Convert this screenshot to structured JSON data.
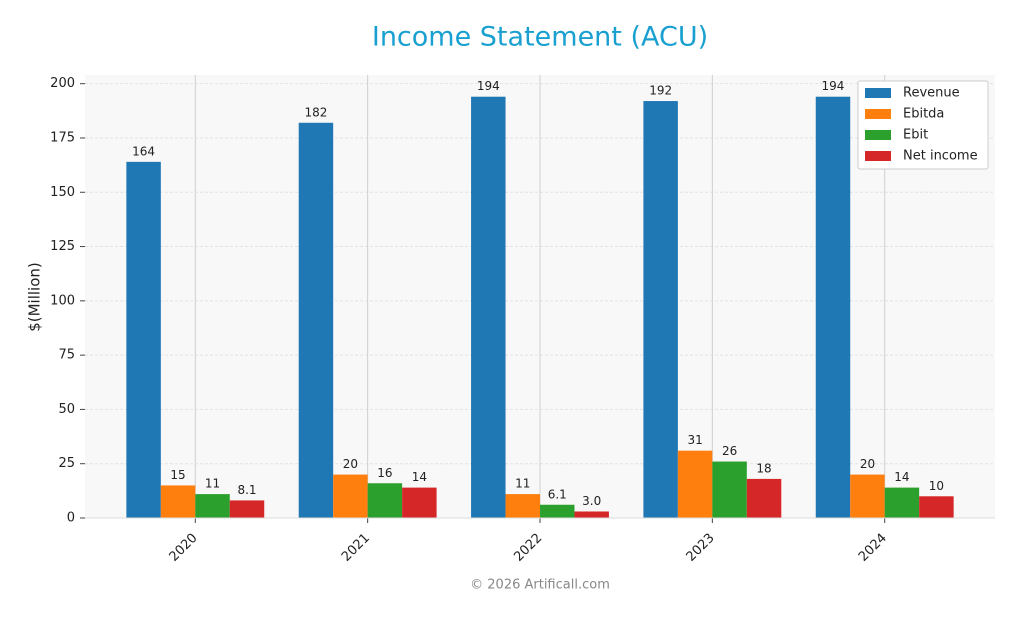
{
  "chart_data": {
    "type": "bar",
    "title": "Income Statement (ACU)",
    "ylabel": "$(Million)",
    "footer": "© 2026 Artificall.com",
    "categories": [
      "2020",
      "2021",
      "2022",
      "2023",
      "2024"
    ],
    "series": [
      {
        "name": "Revenue",
        "color": "#1f77b4",
        "values": [
          164,
          182,
          194,
          192,
          194
        ],
        "value_labels": [
          "164",
          "182",
          "194",
          "192",
          "194"
        ]
      },
      {
        "name": "Ebitda",
        "color": "#ff7f0e",
        "values": [
          15,
          20,
          11,
          31,
          20
        ],
        "value_labels": [
          "15",
          "20",
          "11",
          "31",
          "20"
        ]
      },
      {
        "name": "Ebit",
        "color": "#2ca02c",
        "values": [
          11,
          16,
          6.1,
          26,
          14
        ],
        "value_labels": [
          "11",
          "16",
          "6.1",
          "26",
          "14"
        ]
      },
      {
        "name": "Net income",
        "color": "#d62728",
        "values": [
          8.1,
          14,
          3.0,
          18,
          10
        ],
        "value_labels": [
          "8.1",
          "14",
          "3.0",
          "18",
          "10"
        ]
      }
    ],
    "ylim": [
      0,
      204
    ],
    "yticks": [
      0,
      25,
      50,
      75,
      100,
      125,
      150,
      175,
      200
    ],
    "grid": true,
    "legend": "upper-right"
  }
}
